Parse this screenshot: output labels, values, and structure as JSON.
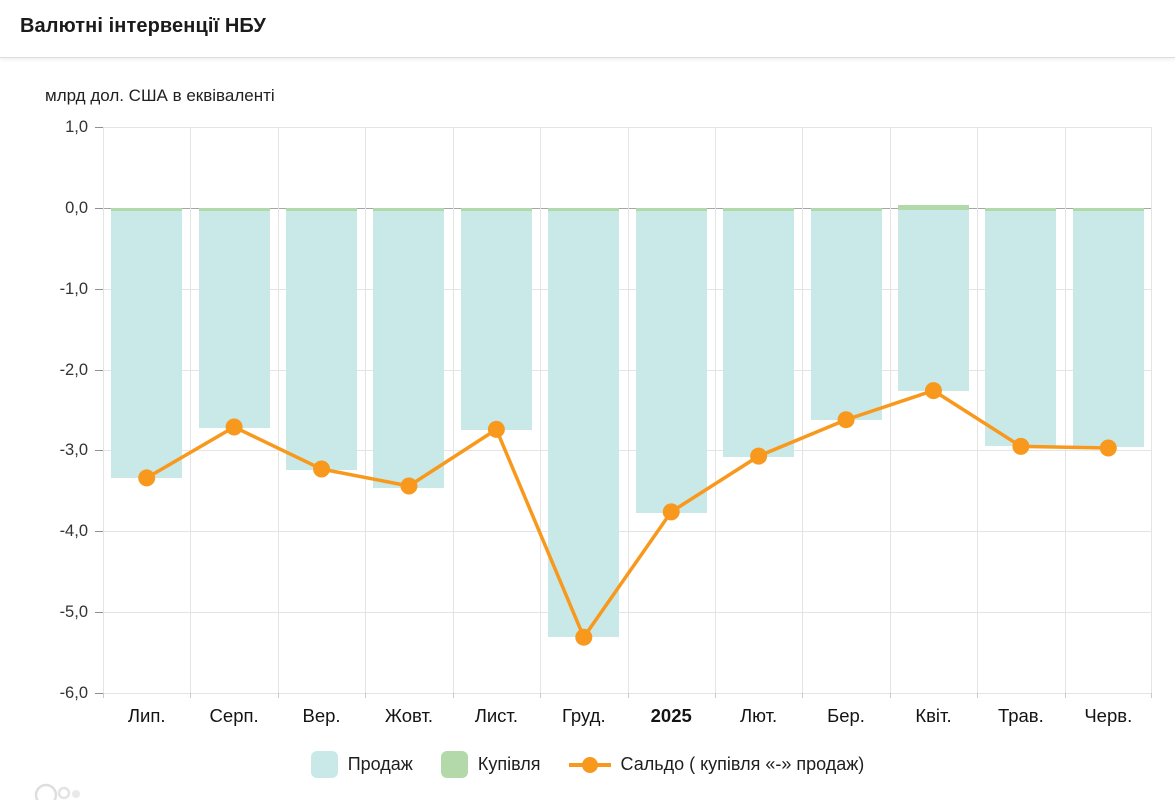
{
  "header": {
    "title": "Валютні інтервенції НБУ"
  },
  "chart_data": {
    "type": "bar",
    "title": "Валютні інтервенції НБУ",
    "axis_unit_label": "млрд дол. США в еквіваленті",
    "categories": [
      "Лип.",
      "Серп.",
      "Вер.",
      "Жовт.",
      "Лист.",
      "Груд.",
      "2025",
      "Лют.",
      "Бер.",
      "Квіт.",
      "Трав.",
      "Черв."
    ],
    "bold_category": "2025",
    "y_ticks": {
      "labels": [
        "1,0",
        "0,0",
        "-1,0",
        "-2,0",
        "-3,0",
        "-4,0",
        "-5,0",
        "-6,0"
      ],
      "values": [
        1,
        0,
        -1,
        -2,
        -3,
        -4,
        -5,
        -6
      ]
    },
    "ylim": [
      -6,
      1
    ],
    "grid": true,
    "legend_position": "bottom",
    "series": [
      {
        "name": "Продаж",
        "type": "bar",
        "color": "#c9e8e8",
        "values": [
          -3.34,
          -2.72,
          -3.24,
          -3.46,
          -2.75,
          -5.31,
          -3.77,
          -3.08,
          -2.63,
          -2.27,
          -2.94,
          -2.96
        ]
      },
      {
        "name": "Купівля",
        "type": "bar",
        "color": "#b3d9ab",
        "values": [
          0.02,
          0.02,
          0.02,
          0.02,
          0.02,
          0.02,
          0.02,
          0.02,
          0.02,
          0.05,
          0.02,
          0.02
        ]
      },
      {
        "name": "Сальдо ( купівля «-» продаж)",
        "type": "line",
        "color": "#f8991d",
        "values": [
          -3.34,
          -2.71,
          -3.23,
          -3.44,
          -2.74,
          -5.31,
          -3.76,
          -3.07,
          -2.62,
          -2.26,
          -2.95,
          -2.97
        ]
      }
    ]
  },
  "colors": {
    "prodazh": "#c9e8e8",
    "kupivlia": "#b3d9ab",
    "saldo": "#f8991d",
    "grid": "#e4e4e4",
    "zero_line": "#a6a6a6"
  }
}
